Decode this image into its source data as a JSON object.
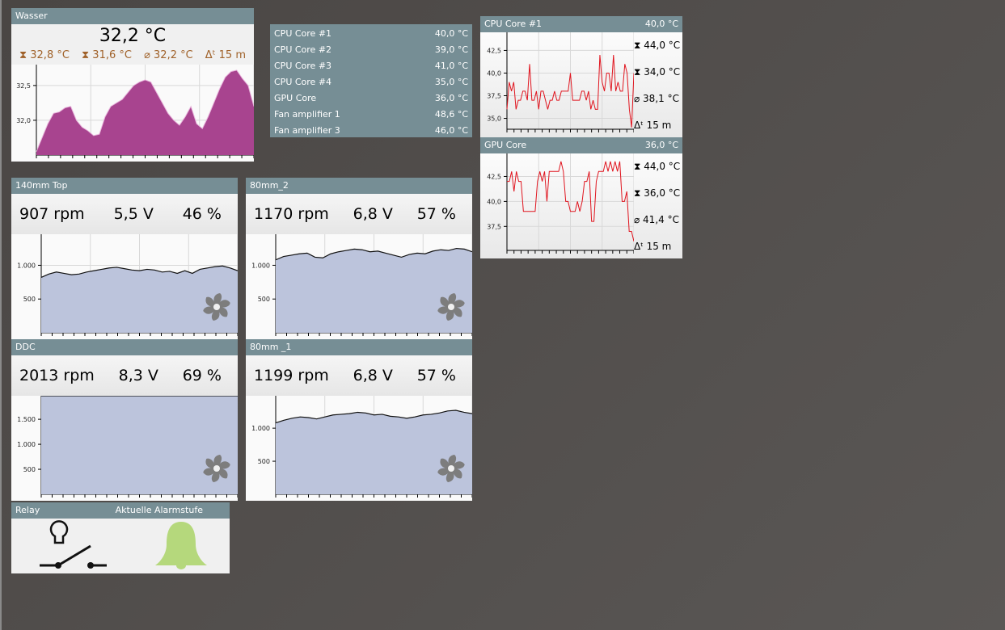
{
  "wasser": {
    "title": "Wasser",
    "value": "32,2 °C",
    "max": "32,8 °C",
    "min": "31,6 °C",
    "avg": "32,2 °C",
    "span": "15 m",
    "color": "#a8448f",
    "ticks": [
      "32,5",
      "32,0"
    ],
    "tick_values": [
      32.5,
      32.0
    ],
    "ylim": [
      31.5,
      32.8
    ],
    "values": [
      31.55,
      31.75,
      31.95,
      32.1,
      32.12,
      32.18,
      32.2,
      32.0,
      31.9,
      31.85,
      31.78,
      31.8,
      32.05,
      32.2,
      32.25,
      32.3,
      32.4,
      32.5,
      32.55,
      32.58,
      32.55,
      32.4,
      32.25,
      32.1,
      32.0,
      31.93,
      32.05,
      32.2,
      31.95,
      31.88,
      32.05,
      32.25,
      32.45,
      32.62,
      32.7,
      32.72,
      32.6,
      32.5,
      32.2
    ]
  },
  "sensors": [
    {
      "name": "CPU Core #1",
      "value": "40,0 °C"
    },
    {
      "name": "CPU Core #2",
      "value": "39,0 °C"
    },
    {
      "name": "CPU Core #3",
      "value": "41,0 °C"
    },
    {
      "name": "CPU Core #4",
      "value": "35,0 °C"
    },
    {
      "name": "GPU Core",
      "value": "36,0 °C"
    },
    {
      "name": "Fan amplifier 1",
      "value": "48,6 °C"
    },
    {
      "name": "Fan amplifier 3",
      "value": "46,0 °C"
    }
  ],
  "temps": [
    {
      "title": "CPU Core #1",
      "value": "40,0 °C",
      "max": "44,0 °C",
      "min": "34,0 °C",
      "avg": "38,1 °C",
      "span": "15 m",
      "ticks": [
        "42,5",
        "40,0",
        "37,5",
        "35,0"
      ],
      "tick_values": [
        42.5,
        40,
        37.5,
        35
      ],
      "ylim": [
        33.8,
        44.5
      ],
      "values": [
        36,
        39,
        38,
        39,
        36,
        37,
        37,
        38,
        38,
        37,
        41,
        37,
        37,
        38,
        36,
        38,
        38,
        37,
        36,
        37,
        37,
        38,
        37,
        37,
        38,
        38,
        38,
        38,
        40,
        37,
        37,
        37,
        37,
        38,
        38,
        37,
        38,
        36,
        37,
        36,
        36,
        42,
        39,
        38,
        40,
        40,
        38,
        42,
        38,
        39,
        38,
        38,
        41,
        40,
        36,
        34,
        40
      ]
    },
    {
      "title": "GPU Core",
      "value": "36,0 °C",
      "max": "44,0 °C",
      "min": "36,0 °C",
      "avg": "41,4 °C",
      "span": "15 m",
      "ticks": [
        "42,5",
        "40,0",
        "37,5"
      ],
      "tick_values": [
        42.5,
        40,
        37.5
      ],
      "ylim": [
        35.1,
        44.8
      ],
      "values": [
        42,
        42,
        43,
        41,
        43,
        42,
        42,
        39,
        39,
        39,
        39,
        39,
        39,
        42,
        43,
        42,
        43,
        40,
        43,
        43,
        43,
        43,
        43,
        44,
        43,
        40,
        40,
        39,
        39,
        39,
        40,
        39,
        40,
        42,
        42,
        43,
        38,
        38,
        42,
        43,
        43,
        43,
        44,
        43,
        44,
        43,
        44,
        43,
        44,
        40,
        40,
        41,
        37,
        37,
        36
      ]
    }
  ],
  "line_color": "#e0141e",
  "fans": [
    {
      "title": "140mm Top",
      "rpm": "907 rpm",
      "volt": "5,5 V",
      "pct": "46 %",
      "ticks": [
        "1.000",
        "500"
      ],
      "tick_values": [
        1000,
        500
      ],
      "ylim": [
        0,
        1460
      ],
      "values": [
        820,
        870,
        900,
        880,
        860,
        870,
        900,
        920,
        940,
        960,
        970,
        950,
        930,
        920,
        940,
        930,
        900,
        910,
        880,
        920,
        880,
        940,
        960,
        980,
        990,
        960,
        920
      ]
    },
    {
      "title": "80mm_2",
      "rpm": "1170 rpm",
      "volt": "6,8 V",
      "pct": "57 %",
      "ticks": [
        "1.000",
        "500"
      ],
      "tick_values": [
        1000,
        500
      ],
      "ylim": [
        0,
        1460
      ],
      "values": [
        1080,
        1130,
        1150,
        1170,
        1180,
        1120,
        1110,
        1170,
        1200,
        1220,
        1240,
        1230,
        1200,
        1210,
        1180,
        1150,
        1120,
        1160,
        1180,
        1170,
        1210,
        1230,
        1220,
        1250,
        1240,
        1200
      ]
    },
    {
      "title": "DDC",
      "rpm": "2013 rpm",
      "volt": "8,3 V",
      "pct": "69 %",
      "ticks": [
        "1.500",
        "1.000",
        "500"
      ],
      "tick_values": [
        1500,
        1000,
        500
      ],
      "ylim": [
        0,
        1970
      ],
      "values": [
        2013,
        2013,
        2013,
        2013
      ]
    },
    {
      "title": "80mm _1",
      "rpm": "1199 rpm",
      "volt": "6,8 V",
      "pct": "57 %",
      "ticks": [
        "1.000",
        "500"
      ],
      "tick_values": [
        1000,
        500
      ],
      "ylim": [
        0,
        1490
      ],
      "values": [
        1080,
        1120,
        1150,
        1170,
        1160,
        1140,
        1170,
        1200,
        1210,
        1220,
        1240,
        1230,
        1200,
        1210,
        1180,
        1170,
        1150,
        1170,
        1200,
        1210,
        1230,
        1260,
        1270,
        1240,
        1220
      ]
    }
  ],
  "fan_fill": "#bcc4dc",
  "relay": {
    "title": "Relay",
    "alarm_title": "Aktuelle Alarmstufe",
    "bell_color": "#b5d87c"
  }
}
